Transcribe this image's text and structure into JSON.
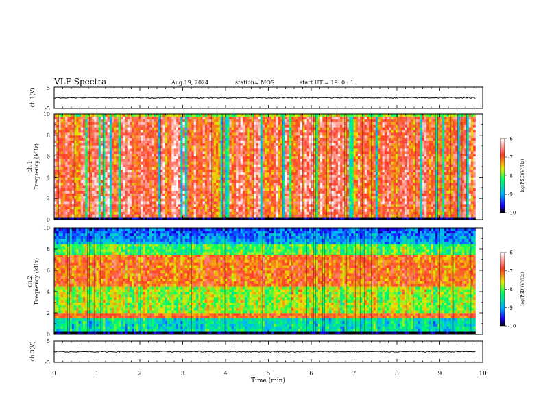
{
  "header": {
    "title": "VLF Spectra",
    "date": "Aug.19, 2024",
    "station": "station= MOS",
    "start": "start  UT =   19: 0  : 1"
  },
  "colorbar": {
    "label": "log(PSD)(V²/Hz)",
    "ticks": [
      "-6",
      "-7",
      "-8",
      "-9",
      "-10"
    ],
    "range": [
      -10,
      -6
    ]
  },
  "chart_data": [
    {
      "type": "line",
      "panel": "ch1-waveform",
      "ylabel": "ch.1(V)",
      "ylim": [
        -5,
        5
      ],
      "yticks": [
        "5",
        "-5"
      ],
      "xlim": [
        0,
        10
      ],
      "series": [
        {
          "x": [
            0,
            9.83
          ],
          "y": [
            0,
            0
          ]
        }
      ]
    },
    {
      "type": "heatmap",
      "panel": "ch1-spectrogram",
      "ylabel_line1": "ch.1",
      "ylabel_line2": "Frequency (kHz)",
      "ylim": [
        0,
        10
      ],
      "yticks": [
        "0",
        "2",
        "4",
        "6",
        "8",
        "10"
      ],
      "xlim": [
        0,
        10
      ],
      "data_end": 9.83,
      "zlim": [
        -10,
        -6
      ]
    },
    {
      "type": "heatmap",
      "panel": "ch2-spectrogram",
      "ylabel_line1": "ch.2",
      "ylabel_line2": "Frequency (kHz)",
      "ylim": [
        0,
        10
      ],
      "yticks": [
        "0",
        "2",
        "4",
        "6",
        "8",
        "10"
      ],
      "xlim": [
        0,
        10
      ],
      "data_end": 9.83,
      "zlim": [
        -10,
        -6
      ]
    },
    {
      "type": "line",
      "panel": "ch3-waveform",
      "ylabel": "ch.3(V)",
      "xlabel": "Time (min)",
      "ylim": [
        -5,
        5
      ],
      "yticks": [
        "5",
        "-5"
      ],
      "xlim": [
        0,
        10
      ],
      "xticks": [
        "0",
        "1",
        "2",
        "3",
        "4",
        "5",
        "6",
        "7",
        "8",
        "9",
        "10"
      ],
      "series": [
        {
          "x": [
            0,
            9.83
          ],
          "y": [
            0,
            0
          ]
        }
      ]
    }
  ]
}
